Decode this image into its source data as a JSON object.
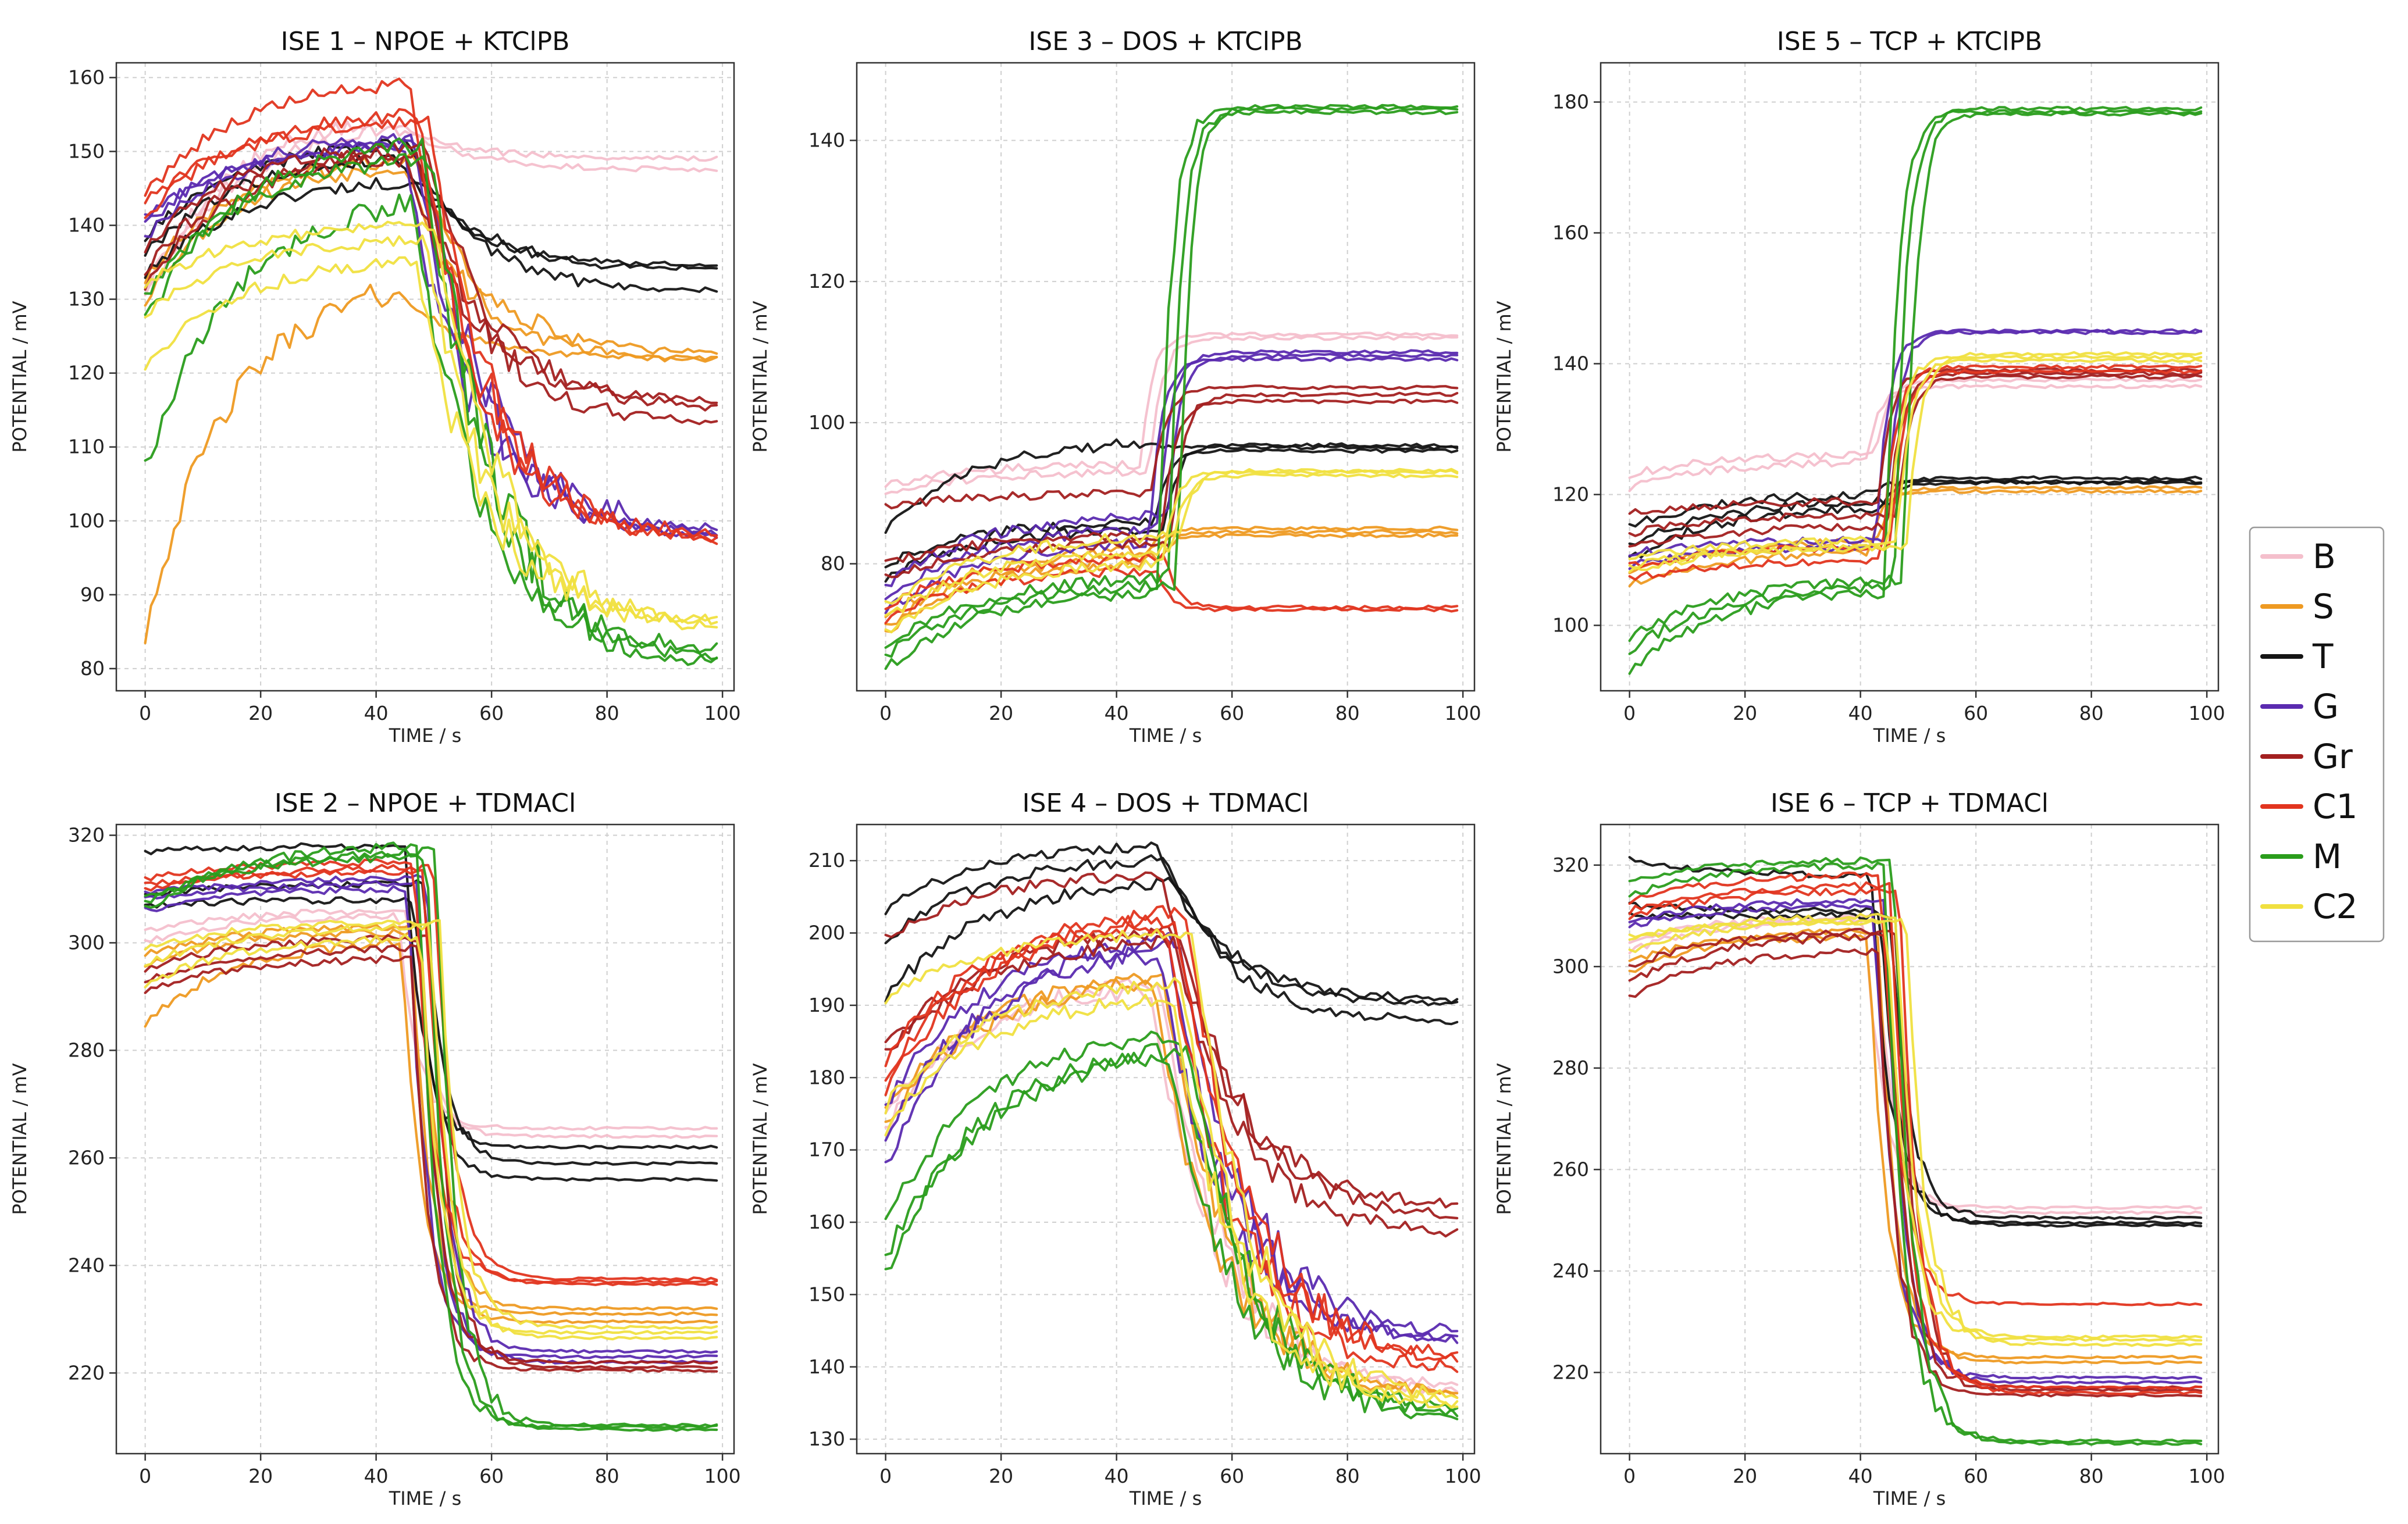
{
  "legend": {
    "entries": [
      {
        "label": "B",
        "color": "#f4bfcc"
      },
      {
        "label": "S",
        "color": "#ee9a22"
      },
      {
        "label": "T",
        "color": "#151515"
      },
      {
        "label": "G",
        "color": "#5b2bb0"
      },
      {
        "label": "Gr",
        "color": "#a32020"
      },
      {
        "label": "C1",
        "color": "#e2351f"
      },
      {
        "label": "M",
        "color": "#2a9d1c"
      },
      {
        "label": "C2",
        "color": "#f0e040"
      }
    ]
  },
  "chart_data": [
    {
      "type": "line",
      "title": "ISE 1 – NPOE + KTClPB",
      "xlabel": "TIME / s",
      "ylabel": "POTENTIAL / mV",
      "xlim": [
        -5,
        102
      ],
      "ylim": [
        77,
        162
      ],
      "xticks": [
        0,
        20,
        40,
        60,
        80,
        100
      ],
      "yticks": [
        80,
        90,
        100,
        110,
        120,
        130,
        140,
        150,
        160
      ],
      "grid": true,
      "t_switch": 45,
      "response": "rise-then-decay",
      "series": [
        {
          "name": "B",
          "traces": [
            [
              131,
              154,
              149
            ],
            [
              130,
              153,
              147.5
            ]
          ]
        },
        {
          "name": "S",
          "traces": [
            [
              85,
              131,
              122
            ],
            [
              130,
              148,
              121.5
            ],
            [
              133,
              149,
              122.5
            ]
          ]
        },
        {
          "name": "T",
          "traces": [
            [
              136,
              149,
              134
            ],
            [
              138,
              151,
              131
            ],
            [
              133,
              146,
              134.5
            ]
          ]
        },
        {
          "name": "G",
          "traces": [
            [
              138,
              151,
              98
            ],
            [
              140,
              152,
              97.5
            ],
            [
              141,
              151,
              98.5
            ]
          ]
        },
        {
          "name": "Gr",
          "traces": [
            [
              132,
              149,
              116
            ],
            [
              134,
              150,
              113
            ],
            [
              137,
              151,
              115
            ]
          ]
        },
        {
          "name": "C1",
          "traces": [
            [
              144,
              159,
              97
            ],
            [
              141,
              155,
              97.5
            ],
            [
              143,
              154,
              96.8
            ]
          ]
        },
        {
          "name": "M",
          "traces": [
            [
              107,
              143,
              82
            ],
            [
              127,
              151,
              80
            ],
            [
              130,
              149,
              80.5
            ]
          ]
        },
        {
          "name": "C2",
          "traces": [
            [
              121,
              135,
              86
            ],
            [
              128,
              138,
              85
            ],
            [
              132,
              140,
              85.5
            ]
          ]
        }
      ]
    },
    {
      "type": "line",
      "title": "ISE 3 – DOS + KTClPB",
      "xlabel": "TIME / s",
      "ylabel": "POTENTIAL / mV",
      "xlim": [
        -5,
        102
      ],
      "ylim": [
        62,
        151
      ],
      "xticks": [
        0,
        20,
        40,
        60,
        80,
        100
      ],
      "yticks": [
        80,
        100,
        120,
        140
      ],
      "grid": true,
      "t_switch": 44,
      "response": "step",
      "series": [
        {
          "name": "B",
          "traces": [
            [
              91,
              94,
              112.5
            ],
            [
              90,
              93,
              112
            ]
          ]
        },
        {
          "name": "S",
          "traces": [
            [
              70,
              80,
              85
            ],
            [
              72,
              82,
              84
            ],
            [
              71,
              81,
              84.5
            ]
          ]
        },
        {
          "name": "T",
          "traces": [
            [
              85,
              97,
              96.5
            ],
            [
              80,
              86,
              96
            ],
            [
              78,
              85,
              96.8
            ]
          ]
        },
        {
          "name": "G",
          "traces": [
            [
              73,
              83,
              109
            ],
            [
              75,
              85,
              110
            ],
            [
              77,
              87,
              109.5
            ]
          ]
        },
        {
          "name": "Gr",
          "traces": [
            [
              88,
              90,
              105
            ],
            [
              80,
              84,
              103
            ],
            [
              78,
              83,
              104
            ]
          ]
        },
        {
          "name": "C1",
          "traces": [
            [
              72,
              79,
              73.5
            ],
            [
              74,
              81,
              73.8
            ]
          ]
        },
        {
          "name": "M",
          "traces": [
            [
              65,
              76,
              144.5
            ],
            [
              68,
              78,
              144
            ],
            [
              67,
              77,
              144.8
            ]
          ]
        },
        {
          "name": "C2",
          "traces": [
            [
              70,
              80,
              93
            ],
            [
              72,
              82,
              92.5
            ],
            [
              74,
              84,
              93.2
            ]
          ]
        }
      ]
    },
    {
      "type": "line",
      "title": "ISE 5 – TCP + KTClPB",
      "xlabel": "TIME / s",
      "ylabel": "POTENTIAL / mV",
      "xlim": [
        -5,
        102
      ],
      "ylim": [
        90,
        186
      ],
      "xticks": [
        0,
        20,
        40,
        60,
        80,
        100
      ],
      "yticks": [
        100,
        120,
        140,
        160,
        180
      ],
      "grid": true,
      "t_switch": 44,
      "response": "step",
      "series": [
        {
          "name": "B",
          "traces": [
            [
              121,
              125,
              136.5
            ],
            [
              123,
              126,
              137.5
            ]
          ]
        },
        {
          "name": "S",
          "traces": [
            [
              106,
              111,
              120.5
            ],
            [
              108,
              113,
              121
            ]
          ]
        },
        {
          "name": "T",
          "traces": [
            [
              115,
              120,
              122
            ],
            [
              110,
              118,
              122.5
            ],
            [
              112,
              119,
              121.8
            ]
          ]
        },
        {
          "name": "G",
          "traces": [
            [
              109,
              112,
              145
            ],
            [
              111,
              113,
              144.8
            ]
          ]
        },
        {
          "name": "Gr",
          "traces": [
            [
              117,
              119,
              139
            ],
            [
              112,
              115,
              138.5
            ],
            [
              114,
              117,
              138
            ]
          ]
        },
        {
          "name": "C1",
          "traces": [
            [
              107,
              110,
              139.5
            ],
            [
              109,
              112,
              138.8
            ]
          ]
        },
        {
          "name": "M",
          "traces": [
            [
              93,
              105,
              178.5
            ],
            [
              96,
              106,
              179
            ],
            [
              98,
              107,
              178.2
            ]
          ]
        },
        {
          "name": "C2",
          "traces": [
            [
              108,
              112,
              141
            ],
            [
              110,
              113,
              140.5
            ],
            [
              109,
              112,
              141.5
            ]
          ]
        }
      ]
    },
    {
      "type": "line",
      "title": "ISE 2 – NPOE + TDMACl",
      "xlabel": "TIME / s",
      "ylabel": "POTENTIAL / mV",
      "xlim": [
        -5,
        102
      ],
      "ylim": [
        205,
        322
      ],
      "xticks": [
        0,
        20,
        40,
        60,
        80,
        100
      ],
      "yticks": [
        220,
        240,
        260,
        280,
        300,
        320
      ],
      "grid": true,
      "t_switch": 45,
      "response": "drop",
      "series": [
        {
          "name": "B",
          "traces": [
            [
              300,
              305,
              265.5
            ],
            [
              302,
              306,
              264
            ]
          ]
        },
        {
          "name": "S",
          "traces": [
            [
              285,
              300,
              231
            ],
            [
              296,
              302,
              229.5
            ],
            [
              298,
              303,
              232
            ]
          ]
        },
        {
          "name": "T",
          "traces": [
            [
              317,
              318,
              262
            ],
            [
              307,
              308,
              256
            ],
            [
              309,
              311,
              259
            ]
          ]
        },
        {
          "name": "G",
          "traces": [
            [
              306,
              310,
              223
            ],
            [
              308,
              311,
              222
            ],
            [
              309,
              312,
              224
            ]
          ]
        },
        {
          "name": "Gr",
          "traces": [
            [
              291,
              297,
              220.5
            ],
            [
              293,
              299,
              222
            ],
            [
              295,
              301,
              221
            ]
          ]
        },
        {
          "name": "C1",
          "traces": [
            [
              312,
              315,
              237
            ],
            [
              311,
              313,
              236.5
            ],
            [
              310,
              314,
              237.5
            ]
          ]
        },
        {
          "name": "M",
          "traces": [
            [
              306,
              318,
              210
            ],
            [
              308,
              316,
              209.5
            ],
            [
              307,
              317,
              210.3
            ]
          ]
        },
        {
          "name": "C2",
          "traces": [
            [
              292,
              301,
              227.5
            ],
            [
              296,
              303,
              226.5
            ],
            [
              299,
              304,
              228.5
            ]
          ]
        }
      ]
    },
    {
      "type": "line",
      "title": "ISE 4 – DOS + TDMACl",
      "xlabel": "TIME / s",
      "ylabel": "POTENTIAL / mV",
      "xlim": [
        -5,
        102
      ],
      "ylim": [
        128,
        215
      ],
      "xticks": [
        0,
        20,
        40,
        60,
        80,
        100
      ],
      "yticks": [
        130,
        140,
        150,
        160,
        170,
        180,
        190,
        200,
        210
      ],
      "grid": true,
      "t_switch": 45,
      "response": "rise-then-decay",
      "series": [
        {
          "name": "B",
          "traces": [
            [
              173,
              192,
              137
            ],
            [
              175,
              193,
              136
            ]
          ]
        },
        {
          "name": "S",
          "traces": [
            [
              173,
              193,
              136
            ],
            [
              175,
              194,
              135.5
            ]
          ]
        },
        {
          "name": "T",
          "traces": [
            [
              203,
              212,
              190
            ],
            [
              199,
              210,
              187.5
            ],
            [
              191,
              207,
              190.5
            ]
          ]
        },
        {
          "name": "G",
          "traces": [
            [
              168,
              197,
              143.5
            ],
            [
              171,
              198,
              143
            ],
            [
              176,
              199,
              144
            ]
          ]
        },
        {
          "name": "Gr",
          "traces": [
            [
              199,
              208,
              162
            ],
            [
              184,
              200,
              158
            ],
            [
              183,
              199,
              160.5
            ]
          ]
        },
        {
          "name": "C1",
          "traces": [
            [
              178,
              201,
              139
            ],
            [
              180,
              202,
              141
            ],
            [
              182,
              203,
              140
            ]
          ]
        },
        {
          "name": "M",
          "traces": [
            [
              153,
              183,
              132.5
            ],
            [
              160,
              186,
              133
            ],
            [
              155,
              184,
              133.5
            ]
          ]
        },
        {
          "name": "C2",
          "traces": [
            [
              173,
              191,
              134
            ],
            [
              176,
              193,
              135
            ],
            [
              191,
              200,
              133.5
            ]
          ]
        }
      ]
    },
    {
      "type": "line",
      "title": "ISE 6 – TCP + TDMACl",
      "xlabel": "TIME / s",
      "ylabel": "POTENTIAL / mV",
      "xlim": [
        -5,
        102
      ],
      "ylim": [
        204,
        328
      ],
      "xticks": [
        0,
        20,
        40,
        60,
        80,
        100
      ],
      "yticks": [
        220,
        240,
        260,
        280,
        300,
        320
      ],
      "grid": true,
      "t_switch": 43,
      "response": "drop",
      "series": [
        {
          "name": "B",
          "traces": [
            [
              303,
              309,
              252.5
            ],
            [
              305,
              310,
              251.5
            ]
          ]
        },
        {
          "name": "S",
          "traces": [
            [
              299,
              306,
              223
            ],
            [
              301,
              307,
              222
            ]
          ]
        },
        {
          "name": "T",
          "traces": [
            [
              321,
              318,
              249.5
            ],
            [
              312,
              311,
              249
            ],
            [
              310,
              310,
              250.5
            ]
          ]
        },
        {
          "name": "G",
          "traces": [
            [
              308,
              312,
              219
            ],
            [
              309,
              313,
              218
            ]
          ]
        },
        {
          "name": "Gr",
          "traces": [
            [
              294,
              303,
              215.5
            ],
            [
              297,
              306,
              216.5
            ],
            [
              300,
              307,
              217
            ]
          ]
        },
        {
          "name": "C1",
          "traces": [
            [
              313,
              318,
              233.5
            ],
            [
              311,
              316,
              217
            ],
            [
              310,
              315,
              216
            ]
          ]
        },
        {
          "name": "M",
          "traces": [
            [
              314,
              320,
              206.5
            ],
            [
              317,
              321,
              206
            ]
          ]
        },
        {
          "name": "C2",
          "traces": [
            [
              303,
              309,
              226.5
            ],
            [
              305,
              310,
              227
            ],
            [
              306,
              309,
              225.5
            ]
          ]
        }
      ]
    }
  ]
}
